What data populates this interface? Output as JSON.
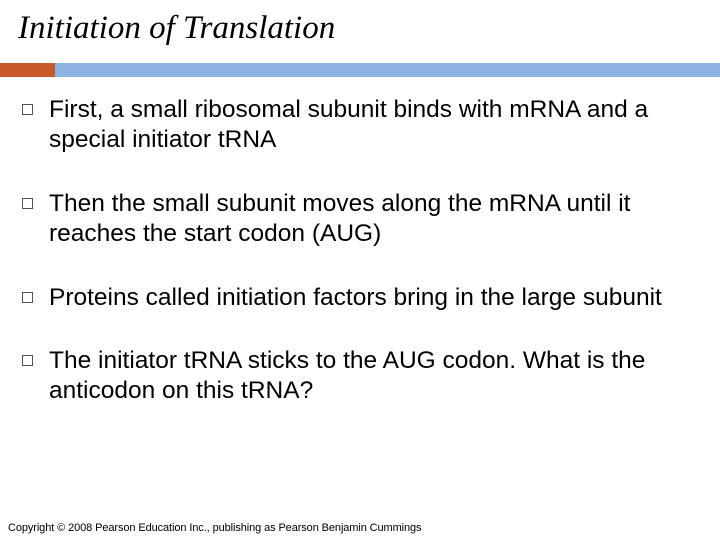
{
  "title": "Initiation of Translation",
  "accent": {
    "short_color": "#c85a2a",
    "long_color": "#8db3e2"
  },
  "bullets": [
    {
      "text": "First, a small ribosomal subunit binds with mRNA and a special initiator tRNA"
    },
    {
      "text": "Then the small subunit moves along the mRNA until it reaches the start codon (AUG)"
    },
    {
      "text": "Proteins called initiation factors bring in the large subunit"
    },
    {
      "text": "The initiator tRNA sticks to the AUG codon. What is the anticodon on this tRNA?"
    }
  ],
  "copyright": "Copyright © 2008 Pearson Education Inc., publishing as Pearson Benjamin Cummings",
  "bullet_border_color": "#555555",
  "text_color": "#000000",
  "background_color": "#ffffff",
  "title_fontsize": 33,
  "bullet_fontsize": 24.5
}
